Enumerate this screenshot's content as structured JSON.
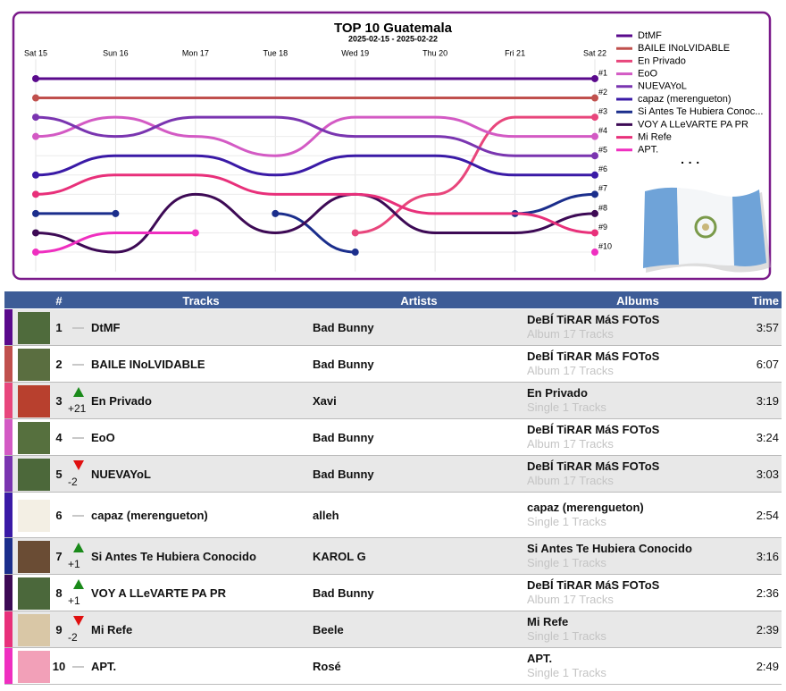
{
  "chart_data": {
    "type": "line",
    "title": "TOP 10 Guatemala",
    "subtitle": "2025-02-15 - 2025-02-22",
    "categories": [
      "Sat 15",
      "Sun 16",
      "Mon 17",
      "Tue 18",
      "Wed 19",
      "Thu 20",
      "Fri 21",
      "Sat 22"
    ],
    "ylim": [
      11,
      0
    ],
    "yticks": [
      {
        "value": 1,
        "label": "#1"
      },
      {
        "value": 2,
        "label": "#2"
      },
      {
        "value": 3,
        "label": "#3"
      },
      {
        "value": 4,
        "label": "#4"
      },
      {
        "value": 5,
        "label": "#5"
      },
      {
        "value": 6,
        "label": "#6"
      },
      {
        "value": 7,
        "label": "#7"
      },
      {
        "value": 8,
        "label": "#8"
      },
      {
        "value": 9,
        "label": "#9"
      },
      {
        "value": 10,
        "label": "#10"
      }
    ],
    "grid": true,
    "legend": "right",
    "legend_more": "· · ·",
    "series": [
      {
        "name": "DtMF",
        "color": "#5a0a8c",
        "values": [
          1,
          1,
          1,
          1,
          1,
          1,
          1,
          1
        ]
      },
      {
        "name": "BAILE INoLVIDABLE",
        "color": "#c0504d",
        "values": [
          2,
          2,
          2,
          2,
          2,
          2,
          2,
          2
        ]
      },
      {
        "name": "En Privado",
        "color": "#e8467c",
        "values": [
          null,
          null,
          null,
          null,
          9,
          7,
          3,
          3
        ]
      },
      {
        "name": "EoO",
        "color": "#d35ac4",
        "values": [
          4,
          3,
          4,
          5,
          3,
          3,
          4,
          4
        ]
      },
      {
        "name": "NUEVAYoL",
        "color": "#7a35b0",
        "values": [
          3,
          4,
          3,
          3,
          4,
          4,
          5,
          5
        ]
      },
      {
        "name": "capaz (merengueton)",
        "color": "#3a1aa6",
        "values": [
          6,
          5,
          5,
          6,
          5,
          5,
          6,
          6
        ]
      },
      {
        "name": "Si Antes Te Hubiera Conoc...",
        "color": "#1b2e8c",
        "values": [
          8,
          8,
          null,
          8,
          10,
          null,
          8,
          7
        ]
      },
      {
        "name": "VOY A LLeVARTE PA PR",
        "color": "#3d0a55",
        "values": [
          9,
          10,
          7,
          9,
          7,
          9,
          9,
          8
        ]
      },
      {
        "name": "Mi Refe",
        "color": "#e8307a",
        "values": [
          7,
          6,
          6,
          7,
          7,
          8,
          8,
          9
        ]
      },
      {
        "name": "APT.",
        "color": "#ef2fc0",
        "values": [
          10,
          9,
          9,
          null,
          null,
          null,
          null,
          10
        ]
      }
    ]
  },
  "table": {
    "headers": [
      "#",
      "Tracks",
      "Artists",
      "Albums",
      "Time"
    ],
    "rows": [
      {
        "rank": 1,
        "track": "DtMF",
        "artist": "Bad Bunny",
        "album": "DeBÍ TiRAR MáS FOToS",
        "album_info": "Album 17 Tracks",
        "time": "3:57"
      },
      {
        "rank": 2,
        "track": "BAILE INoLVIDABLE",
        "artist": "Bad Bunny",
        "album": "DeBÍ TiRAR MáS FOToS",
        "album_info": "Album 17 Tracks",
        "time": "6:07"
      },
      {
        "rank": 3,
        "change": "+21",
        "track": "En Privado",
        "artist": "Xavi",
        "album": "En Privado",
        "album_info": "Single 1 Tracks",
        "time": "3:19"
      },
      {
        "rank": 4,
        "track": "EoO",
        "artist": "Bad Bunny",
        "album": "DeBÍ TiRAR MáS FOToS",
        "album_info": "Album 17 Tracks",
        "time": "3:24"
      },
      {
        "rank": 5,
        "change": "-2",
        "track": "NUEVAYoL",
        "artist": "Bad Bunny",
        "album": "DeBÍ TiRAR MáS FOToS",
        "album_info": "Album 17 Tracks",
        "time": "3:03"
      },
      {
        "rank": 6,
        "track": "capaz (merengueton)",
        "artist": "alleh",
        "album": "capaz (merengueton)",
        "album_info": "Single 1 Tracks",
        "time": "2:54"
      },
      {
        "rank": 7,
        "change": "+1",
        "track": "Si Antes Te Hubiera Conocido",
        "artist": "KAROL G",
        "album": "Si Antes Te Hubiera Conocido",
        "album_info": "Single 1 Tracks",
        "time": "3:16"
      },
      {
        "rank": 8,
        "change": "+1",
        "track": "VOY A LLeVARTE PA PR",
        "artist": "Bad Bunny",
        "album": "DeBÍ TiRAR MáS FOToS",
        "album_info": "Album 17 Tracks",
        "time": "2:36"
      },
      {
        "rank": 9,
        "change": "-2",
        "track": "Mi Refe",
        "artist": "Beele",
        "album": "Mi Refe",
        "album_info": "Single 1 Tracks",
        "time": "2:39"
      },
      {
        "rank": 10,
        "track": "APT.",
        "artist": "Rosé",
        "album": "APT.",
        "album_info": "Single 1 Tracks",
        "time": "2:49"
      }
    ]
  }
}
